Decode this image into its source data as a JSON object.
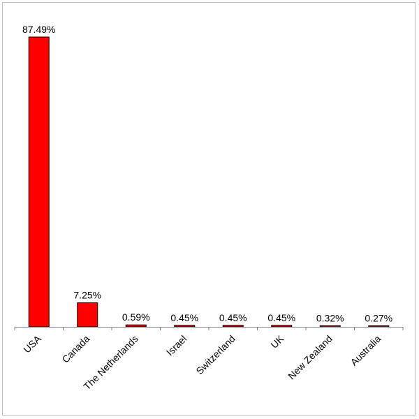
{
  "chart_data": {
    "type": "bar",
    "title": "",
    "xlabel": "",
    "ylabel": "",
    "categories": [
      "USA",
      "Canada",
      "The Netherlands",
      "Israel",
      "Switzerland",
      "UK",
      "New Zealand",
      "Australia"
    ],
    "values": [
      87.49,
      7.25,
      0.59,
      0.45,
      0.45,
      0.45,
      0.32,
      0.27
    ],
    "data_labels": [
      "87.49%",
      "7.25%",
      "0.59%",
      "0.45%",
      "0.45%",
      "0.45%",
      "0.32%",
      "0.27%"
    ],
    "ylim": [
      0,
      87.49
    ],
    "y_axis_visible": false,
    "grid": false,
    "legend": "none",
    "bar_color": "#ff0000",
    "bar_outline_color": "#000000"
  }
}
